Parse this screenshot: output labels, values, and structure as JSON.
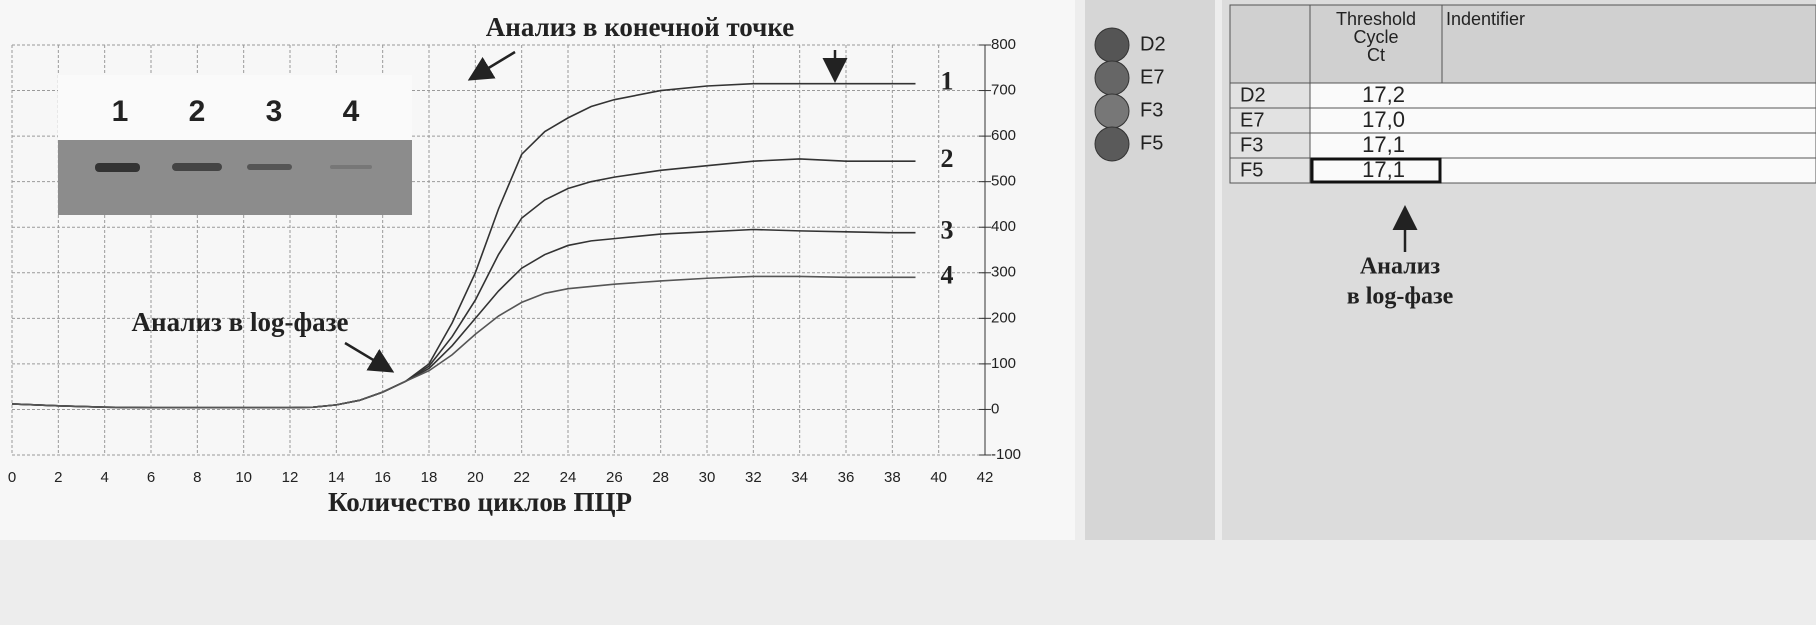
{
  "chart_data": {
    "type": "line",
    "annotations": {
      "endpoint": "Анализ в конечной точке",
      "logphase": "Анализ в log-фазе"
    },
    "x_label": "Количество циклов ПЦР",
    "x": [
      0,
      2,
      4,
      6,
      8,
      10,
      12,
      13,
      14,
      15,
      16,
      17,
      18,
      19,
      20,
      21,
      22,
      23,
      24,
      25,
      26,
      28,
      30,
      32,
      34,
      36,
      38,
      39
    ],
    "series": [
      {
        "name": "1",
        "color": "#333333",
        "values": [
          12,
          8,
          5,
          4,
          4,
          4,
          4,
          5,
          10,
          20,
          38,
          62,
          100,
          190,
          300,
          440,
          560,
          610,
          640,
          665,
          680,
          700,
          710,
          715,
          715,
          715,
          715,
          715
        ]
      },
      {
        "name": "2",
        "color": "#333333",
        "values": [
          12,
          8,
          5,
          4,
          4,
          4,
          4,
          5,
          10,
          20,
          38,
          62,
          95,
          160,
          240,
          340,
          420,
          460,
          485,
          500,
          510,
          525,
          535,
          545,
          550,
          545,
          545,
          545
        ]
      },
      {
        "name": "3",
        "color": "#333333",
        "values": [
          12,
          8,
          5,
          4,
          4,
          4,
          4,
          5,
          10,
          20,
          38,
          62,
          90,
          140,
          200,
          260,
          310,
          340,
          360,
          370,
          375,
          385,
          390,
          395,
          392,
          390,
          388,
          388
        ]
      },
      {
        "name": "4",
        "color": "#555555",
        "values": [
          12,
          8,
          5,
          4,
          4,
          4,
          4,
          5,
          10,
          20,
          38,
          62,
          85,
          120,
          165,
          205,
          235,
          255,
          265,
          270,
          275,
          282,
          288,
          292,
          292,
          290,
          290,
          290
        ]
      }
    ],
    "xlim": [
      0,
      42
    ],
    "xticks": [
      0,
      2,
      4,
      6,
      8,
      10,
      12,
      14,
      16,
      18,
      20,
      22,
      24,
      26,
      28,
      30,
      32,
      34,
      36,
      38,
      40,
      42
    ],
    "ylim": [
      -100,
      800
    ],
    "yticks": [
      -100,
      0,
      100,
      200,
      300,
      400,
      500,
      600,
      700,
      800
    ],
    "grid": true,
    "inset_lanes": [
      "1",
      "2",
      "3",
      "4"
    ],
    "wells": [
      "D2",
      "E7",
      "F3",
      "F5"
    ],
    "ct_table": {
      "header": {
        "ct": [
          "Threshold",
          "Cycle",
          "Ct"
        ],
        "id": "Indentifier"
      },
      "rows": [
        [
          "D2",
          "17,2"
        ],
        [
          "E7",
          "17,0"
        ],
        [
          "F3",
          "17,1"
        ],
        [
          "F5",
          "17,1"
        ]
      ]
    },
    "ct_annotation": [
      "Анализ",
      "в log-фазе"
    ]
  }
}
